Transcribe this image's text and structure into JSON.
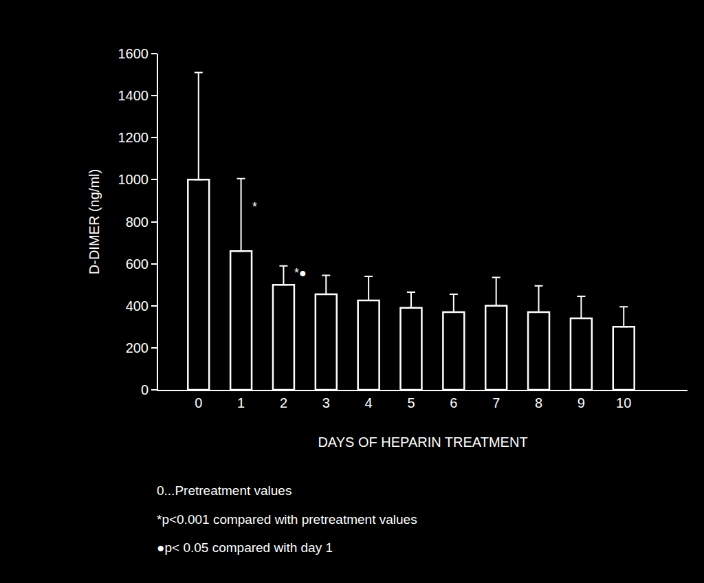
{
  "chart_data": {
    "type": "bar",
    "x_label": "DAYS OF HEPARIN TREATMENT",
    "y_label": "D-DIMER (ng/ml)",
    "categories": [
      "0",
      "1",
      "2",
      "3",
      "4",
      "5",
      "6",
      "7",
      "8",
      "9",
      "10"
    ],
    "values": [
      1000,
      660,
      500,
      455,
      425,
      390,
      370,
      400,
      370,
      340,
      300
    ],
    "error": [
      510,
      345,
      90,
      90,
      115,
      75,
      85,
      135,
      125,
      105,
      95
    ],
    "color": "#ffffff",
    "ylim": [
      0,
      1600
    ],
    "yticks": [
      0,
      200,
      400,
      600,
      800,
      1000,
      1200,
      1400,
      1600
    ],
    "grid": false,
    "annotations": [
      {
        "category": "1",
        "y": 870,
        "text": "*"
      },
      {
        "category": "2",
        "y": 555,
        "text": "*●"
      }
    ],
    "notes": [
      "0...Pretreatment values",
      "*p<0.001 compared with pretreatment values",
      "●p< 0.05 compared with day 1"
    ]
  }
}
